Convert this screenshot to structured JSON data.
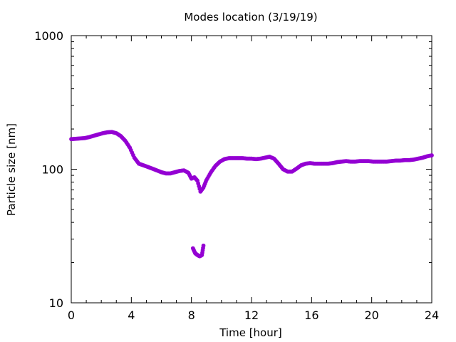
{
  "chart_data": {
    "type": "scatter",
    "title": "Modes location (3/19/19)",
    "xlabel": "Time [hour]",
    "ylabel": "Particle size [nm]",
    "xlim": [
      0,
      24
    ],
    "ylim": [
      10,
      1000
    ],
    "yscale": "log",
    "grid": false,
    "legend": "none",
    "x_ticks": [
      0,
      4,
      8,
      12,
      16,
      20,
      24
    ],
    "x_tick_labels": [
      "0",
      "4",
      "8",
      "12",
      "16",
      "20",
      "24"
    ],
    "y_ticks": [
      10,
      100,
      1000
    ],
    "y_tick_labels": [
      "10",
      "100",
      "1000"
    ],
    "marker_color": "#9400d3",
    "series": [
      {
        "x": [
          0.0,
          0.3,
          0.6,
          0.9,
          1.2,
          1.5,
          1.8,
          2.1,
          2.4,
          2.7,
          3.0,
          3.3,
          3.6,
          3.9,
          4.2,
          4.5,
          4.8,
          5.1,
          5.4,
          5.7,
          6.0,
          6.3,
          6.6,
          6.9,
          7.2,
          7.5,
          7.8,
          8.0,
          8.2,
          8.4,
          8.6,
          8.8,
          9.0,
          9.3,
          9.6,
          9.9,
          10.2,
          10.5,
          10.8,
          11.1,
          11.4,
          11.7,
          12.0,
          12.3,
          12.6,
          12.9,
          13.2,
          13.5,
          13.8,
          14.1,
          14.4,
          14.7,
          15.0,
          15.3,
          15.6,
          15.9,
          16.2,
          16.5,
          16.8,
          17.1,
          17.4,
          17.7,
          18.0,
          18.3,
          18.6,
          18.9,
          19.2,
          19.5,
          19.8,
          20.1,
          20.4,
          20.7,
          21.0,
          21.3,
          21.6,
          21.9,
          22.2,
          22.5,
          22.8,
          23.1,
          23.4,
          23.7,
          24.0,
          8.1,
          8.25,
          8.4,
          8.55,
          8.7,
          8.8
        ],
        "y": [
          168,
          169,
          170,
          171,
          174,
          178,
          182,
          186,
          189,
          190,
          186,
          177,
          163,
          145,
          122,
          110,
          107,
          104,
          101,
          98,
          95,
          93,
          93,
          95,
          97,
          98,
          94,
          85,
          87,
          82,
          68,
          73,
          83,
          95,
          106,
          114,
          119,
          121,
          121,
          121,
          121,
          120,
          120,
          119,
          120,
          122,
          124,
          120,
          110,
          100,
          96,
          96,
          101,
          107,
          110,
          111,
          110,
          110,
          110,
          110,
          111,
          113,
          114,
          115,
          114,
          114,
          115,
          115,
          115,
          114,
          114,
          114,
          114,
          115,
          116,
          116,
          117,
          117,
          118,
          120,
          122,
          125,
          127,
          25.6,
          23.5,
          22.8,
          22.3,
          22.8,
          26.8
        ]
      }
    ]
  }
}
